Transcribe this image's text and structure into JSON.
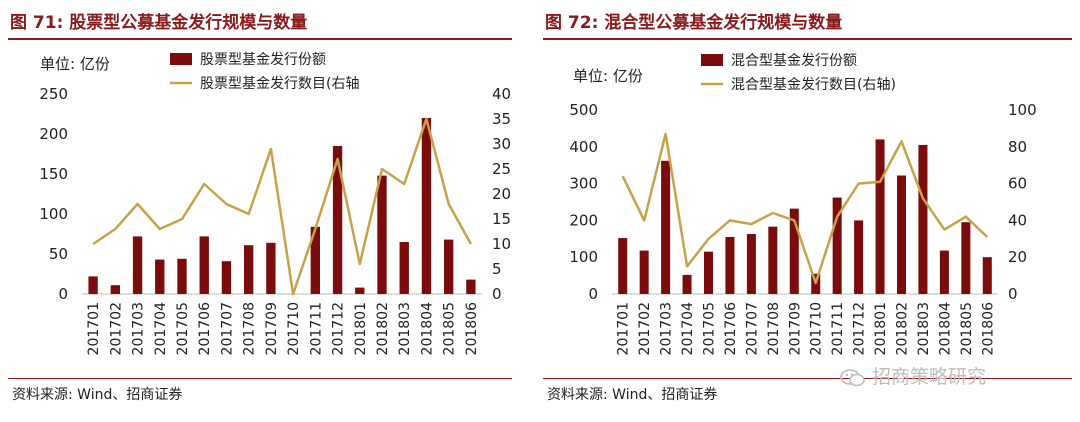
{
  "left": {
    "title": "图 71:  股票型公募基金发行规模与数量",
    "source": "资料来源:  Wind、招商证券",
    "chart_data": {
      "type": "bar+line",
      "unit_label": "单位:  亿份",
      "categories": [
        "201701",
        "201702",
        "201703",
        "201704",
        "201705",
        "201706",
        "201707",
        "201708",
        "201709",
        "201710",
        "201711",
        "201712",
        "201801",
        "201802",
        "201803",
        "201804",
        "201805",
        "201806"
      ],
      "series": [
        {
          "name": "股票型基金发行份额",
          "type": "bar",
          "axis": "left",
          "color": "#7a0c0c",
          "values": [
            22,
            11,
            72,
            43,
            44,
            72,
            41,
            61,
            64,
            0,
            84,
            185,
            8,
            148,
            65,
            220,
            68,
            18
          ]
        },
        {
          "name": "股票型基金发行数目(右轴",
          "type": "line",
          "axis": "right",
          "color": "#c8a24a",
          "values": [
            10,
            13,
            18,
            13,
            15,
            22,
            18,
            16,
            29,
            0,
            13,
            27,
            6,
            25,
            22,
            35,
            18,
            10
          ]
        }
      ],
      "ylim_left": [
        0,
        250
      ],
      "yticks_left": [
        0,
        50,
        100,
        150,
        200,
        250
      ],
      "ylim_right": [
        0,
        40
      ],
      "yticks_right": [
        0,
        5,
        10,
        15,
        20,
        25,
        30,
        35,
        40
      ],
      "legend_position": "top-center"
    }
  },
  "right": {
    "title": "图 72:  混合型公募基金发行规模与数量",
    "source": "资料来源:  Wind、招商证券",
    "watermark": "招商策略研究",
    "chart_data": {
      "type": "bar+line",
      "unit_label": "单位:  亿份",
      "categories": [
        "201701",
        "201702",
        "201703",
        "201704",
        "201705",
        "201706",
        "201707",
        "201708",
        "201709",
        "201710",
        "201711",
        "201712",
        "201801",
        "201802",
        "201803",
        "201804",
        "201805",
        "201806"
      ],
      "series": [
        {
          "name": "混合型基金发行份额",
          "type": "bar",
          "axis": "left",
          "color": "#7a0c0c",
          "values": [
            152,
            118,
            362,
            52,
            115,
            155,
            163,
            183,
            232,
            55,
            262,
            200,
            420,
            322,
            405,
            118,
            195,
            100
          ]
        },
        {
          "name": "混合型基金发行数目(右轴)",
          "type": "line",
          "axis": "right",
          "color": "#c8a24a",
          "values": [
            64,
            40,
            87,
            15,
            30,
            40,
            38,
            44,
            40,
            6,
            42,
            60,
            61,
            83,
            52,
            35,
            42,
            31
          ]
        }
      ],
      "ylim_left": [
        0,
        500
      ],
      "yticks_left": [
        0,
        100,
        200,
        300,
        400,
        500
      ],
      "ylim_right": [
        0,
        100
      ],
      "yticks_right": [
        0,
        20,
        40,
        60,
        80,
        100
      ],
      "legend_position": "top-center"
    }
  }
}
